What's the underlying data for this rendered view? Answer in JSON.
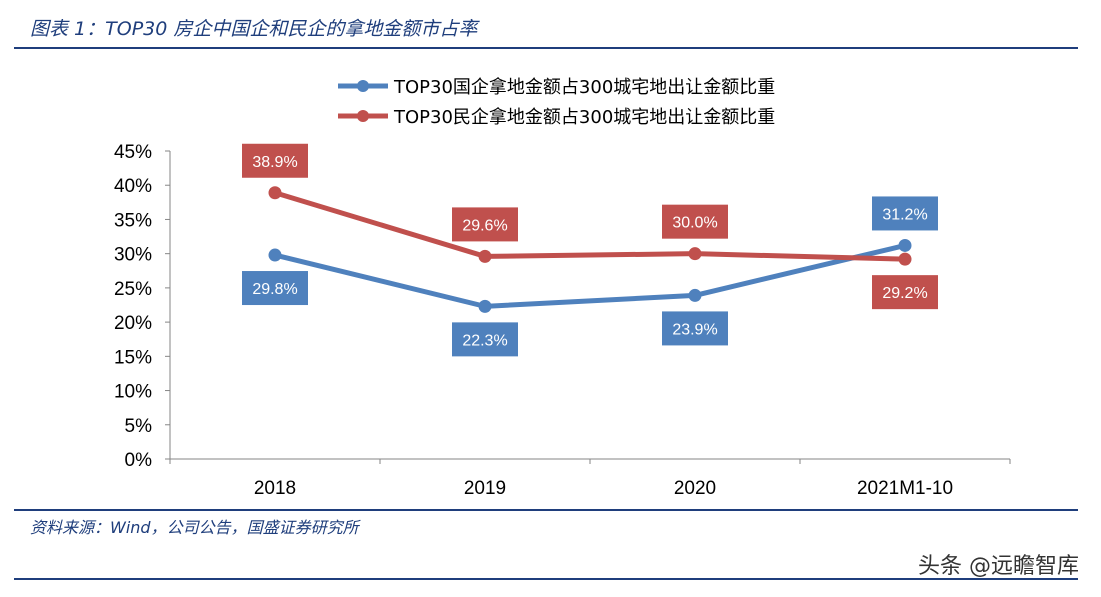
{
  "header": {
    "title": "图表 1：TOP30 房企中国企和民企的拿地金额市占率"
  },
  "footer": {
    "source": "资料来源：Wind，公司公告，国盛证券研究所",
    "watermark": "头条 @远瞻智库"
  },
  "colors": {
    "accent": "#1f3e7c",
    "series_blue": "#4f81bd",
    "series_red": "#c0504d"
  },
  "chart_data": {
    "type": "line",
    "categories": [
      "2018",
      "2019",
      "2020",
      "2021M1-10"
    ],
    "series": [
      {
        "name": "TOP30国企拿地金额占300城宅地出让金额比重",
        "values": [
          29.8,
          22.3,
          23.9,
          31.2
        ],
        "labels": [
          "29.8%",
          "22.3%",
          "23.9%",
          "31.2%"
        ],
        "color": "#4f81bd"
      },
      {
        "name": "TOP30民企拿地金额占300城宅地出让金额比重",
        "values": [
          38.9,
          29.6,
          30.0,
          29.2
        ],
        "labels": [
          "38.9%",
          "29.6%",
          "30.0%",
          "29.2%"
        ],
        "color": "#c0504d"
      }
    ],
    "ylim": [
      0,
      45
    ],
    "yticks": [
      "0%",
      "5%",
      "10%",
      "15%",
      "20%",
      "25%",
      "30%",
      "35%",
      "40%",
      "45%"
    ],
    "legend_position": "top-center",
    "grid": false
  }
}
